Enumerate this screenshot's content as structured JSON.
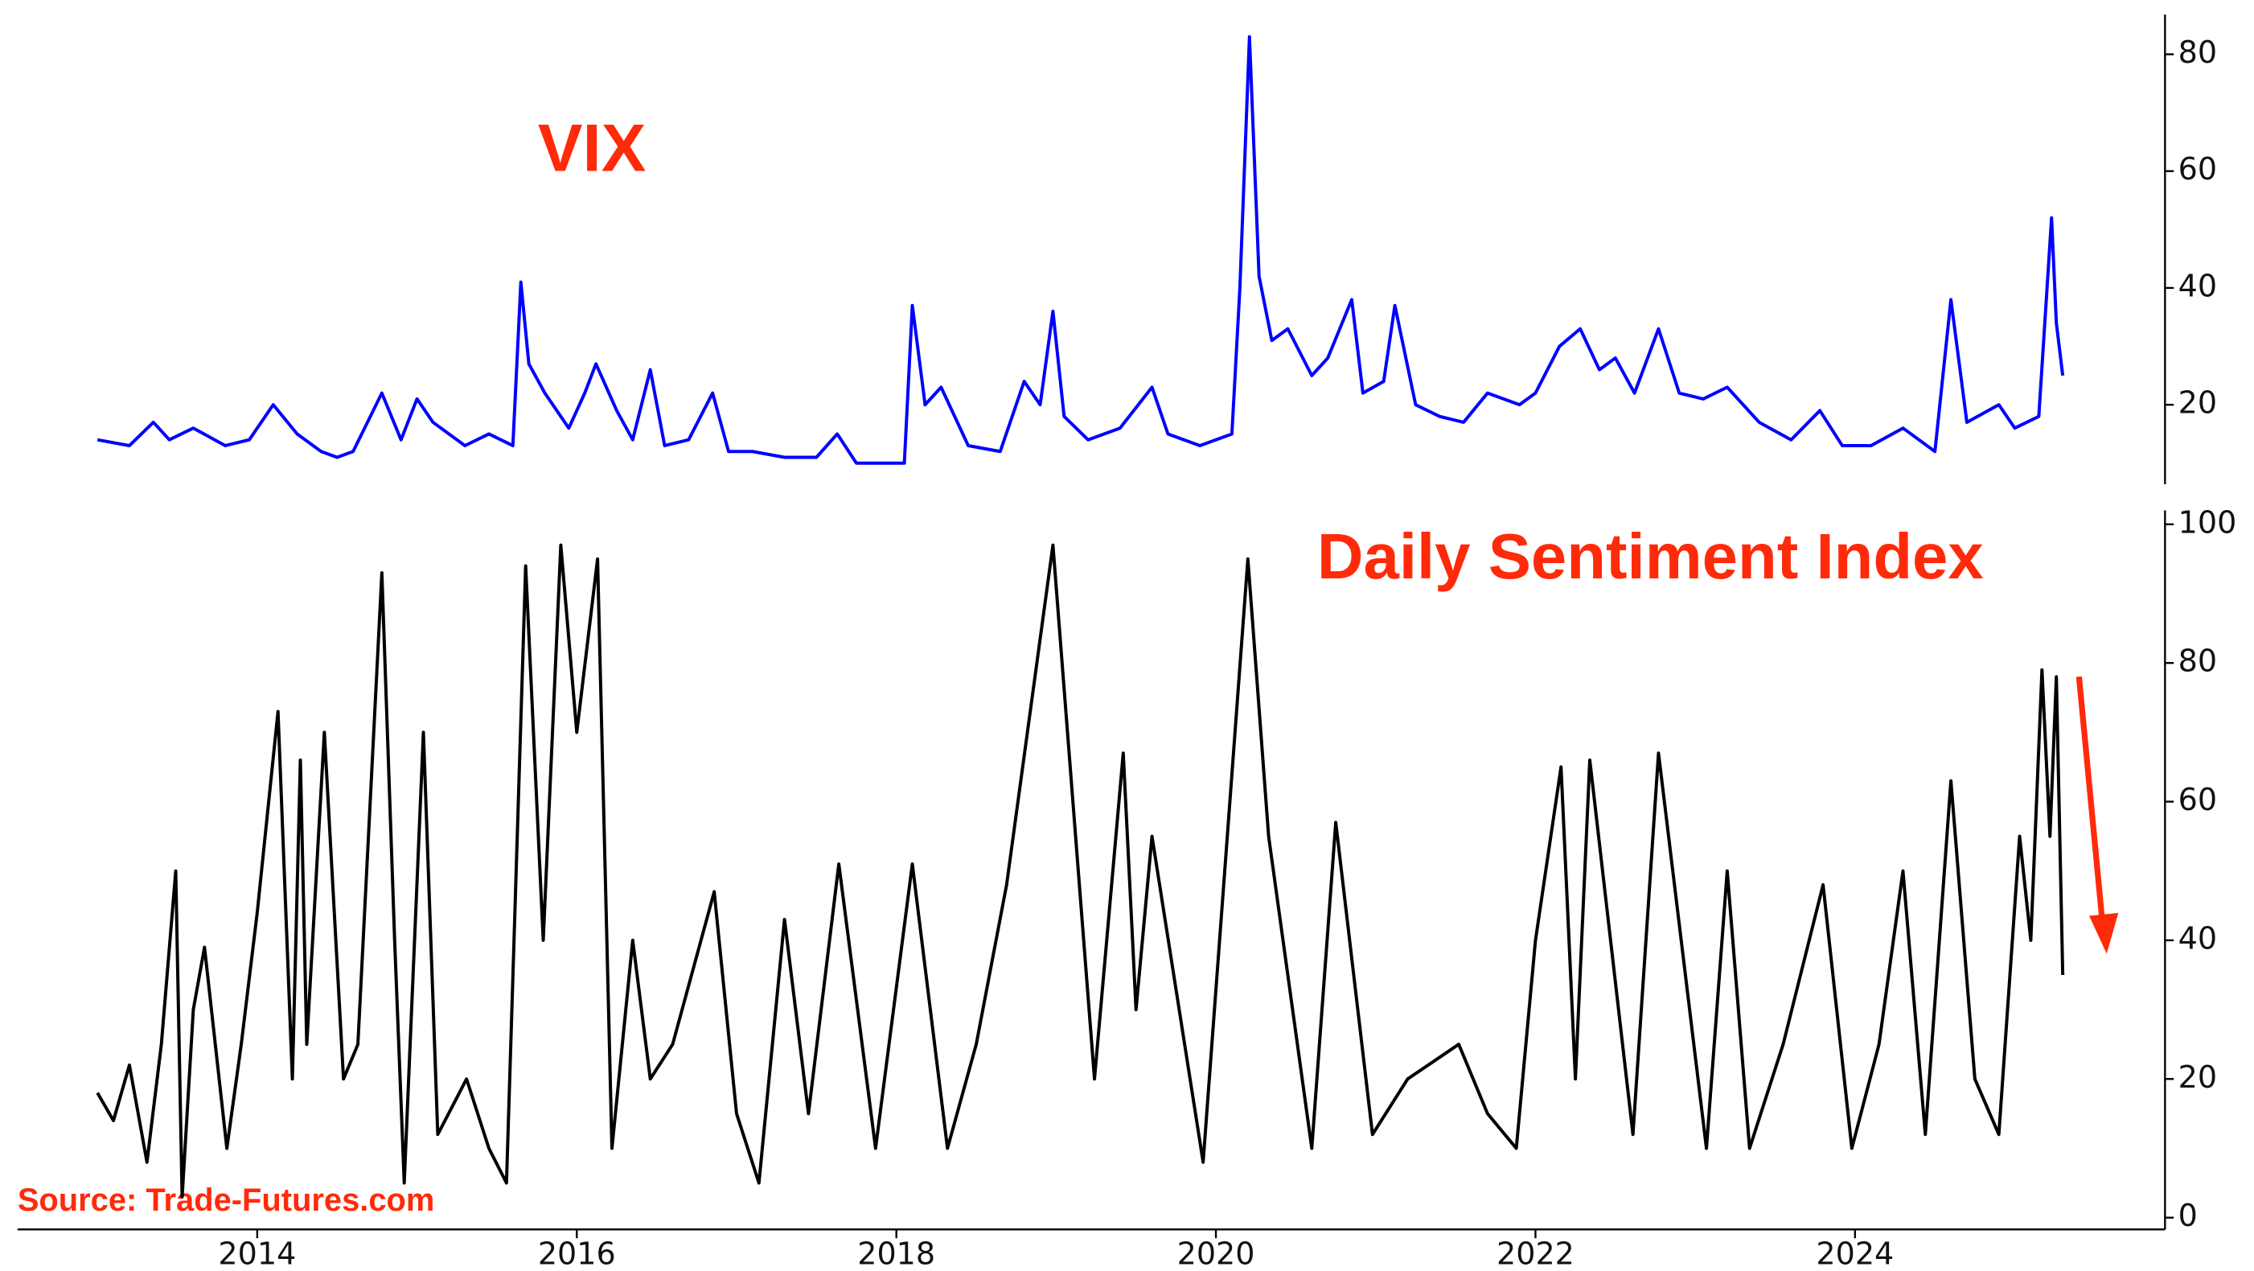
{
  "source": "Source: Trade-Futures.com",
  "chart_data": [
    {
      "type": "line",
      "title": "VIX",
      "color": "#0000ff",
      "x": [
        2013.0,
        2013.2,
        2013.35,
        2013.45,
        2013.6,
        2013.8,
        2013.95,
        2014.1,
        2014.25,
        2014.4,
        2014.5,
        2014.6,
        2014.78,
        2014.9,
        2015.0,
        2015.1,
        2015.3,
        2015.45,
        2015.6,
        2015.65,
        2015.7,
        2015.8,
        2015.95,
        2016.05,
        2016.12,
        2016.25,
        2016.35,
        2016.46,
        2016.55,
        2016.7,
        2016.85,
        2016.95,
        2017.1,
        2017.3,
        2017.5,
        2017.63,
        2017.75,
        2017.95,
        2018.05,
        2018.1,
        2018.18,
        2018.28,
        2018.45,
        2018.65,
        2018.8,
        2018.9,
        2018.98,
        2019.05,
        2019.2,
        2019.4,
        2019.6,
        2019.7,
        2019.9,
        2020.1,
        2020.15,
        2020.21,
        2020.27,
        2020.35,
        2020.45,
        2020.6,
        2020.7,
        2020.85,
        2020.92,
        2021.05,
        2021.12,
        2021.25,
        2021.4,
        2021.55,
        2021.7,
        2021.9,
        2022.0,
        2022.15,
        2022.28,
        2022.4,
        2022.5,
        2022.62,
        2022.77,
        2022.9,
        2023.05,
        2023.2,
        2023.4,
        2023.6,
        2023.78,
        2023.92,
        2024.1,
        2024.3,
        2024.5,
        2024.6,
        2024.7,
        2024.9,
        2025.0,
        2025.15,
        2025.23,
        2025.26,
        2025.3
      ],
      "values": [
        14,
        13,
        17,
        14,
        16,
        13,
        14,
        20,
        15,
        12,
        11,
        12,
        22,
        14,
        21,
        17,
        13,
        15,
        13,
        41,
        27,
        22,
        16,
        22,
        27,
        19,
        14,
        26,
        13,
        14,
        22,
        12,
        12,
        11,
        11,
        15,
        10,
        10,
        10,
        37,
        20,
        23,
        13,
        12,
        24,
        20,
        36,
        18,
        14,
        16,
        23,
        15,
        13,
        15,
        40,
        83,
        42,
        31,
        33,
        25,
        28,
        38,
        22,
        24,
        37,
        20,
        18,
        17,
        22,
        20,
        22,
        30,
        33,
        26,
        28,
        22,
        33,
        22,
        21,
        23,
        17,
        14,
        19,
        13,
        13,
        16,
        12,
        38,
        17,
        20,
        16,
        18,
        52,
        34,
        25
      ],
      "xlim": [
        2012.5,
        2025.94
      ],
      "ylim": [
        6.4,
        86.8
      ],
      "yticks": [
        20,
        40,
        60,
        80
      ]
    },
    {
      "type": "line",
      "title": "Daily Sentiment Index",
      "color": "#000000",
      "x": [
        2013.0,
        2013.1,
        2013.2,
        2013.31,
        2013.4,
        2013.49,
        2013.53,
        2013.6,
        2013.67,
        2013.81,
        2013.9,
        2014.0,
        2014.13,
        2014.22,
        2014.27,
        2014.31,
        2014.42,
        2014.54,
        2014.63,
        2014.78,
        2014.86,
        2014.92,
        2015.04,
        2015.13,
        2015.31,
        2015.45,
        2015.56,
        2015.68,
        2015.79,
        2015.9,
        2016.0,
        2016.13,
        2016.22,
        2016.35,
        2016.46,
        2016.6,
        2016.86,
        2017.0,
        2017.14,
        2017.3,
        2017.45,
        2017.64,
        2017.87,
        2018.1,
        2018.32,
        2018.5,
        2018.69,
        2018.98,
        2019.24,
        2019.42,
        2019.5,
        2019.6,
        2019.92,
        2020.2,
        2020.33,
        2020.6,
        2020.75,
        2020.98,
        2021.2,
        2021.52,
        2021.7,
        2021.88,
        2022.0,
        2022.16,
        2022.25,
        2022.34,
        2022.61,
        2022.77,
        2023.07,
        2023.2,
        2023.34,
        2023.55,
        2023.8,
        2023.98,
        2024.15,
        2024.3,
        2024.44,
        2024.6,
        2024.75,
        2024.9,
        2025.03,
        2025.1,
        2025.17,
        2025.22,
        2025.26,
        2025.3
      ],
      "values": [
        18,
        14,
        22,
        8,
        25,
        50,
        3,
        30,
        39,
        10,
        25,
        44,
        73,
        20,
        66,
        25,
        70,
        20,
        25,
        93,
        40,
        5,
        70,
        12,
        20,
        10,
        5,
        94,
        40,
        97,
        70,
        95,
        10,
        40,
        20,
        25,
        47,
        15,
        5,
        43,
        15,
        51,
        10,
        51,
        10,
        25,
        48,
        97,
        20,
        67,
        30,
        55,
        8,
        95,
        55,
        10,
        57,
        12,
        20,
        25,
        15,
        10,
        40,
        65,
        20,
        66,
        12,
        67,
        10,
        50,
        10,
        25,
        48,
        10,
        25,
        50,
        12,
        63,
        20,
        12,
        55,
        40,
        79,
        55,
        78,
        35
      ],
      "xlim": [
        2012.5,
        2025.94
      ],
      "ylim": [
        -1.7,
        102
      ],
      "yticks": [
        0,
        20,
        40,
        60,
        80,
        100
      ],
      "xticks": [
        2014,
        2016,
        2018,
        2020,
        2022,
        2024
      ]
    }
  ]
}
